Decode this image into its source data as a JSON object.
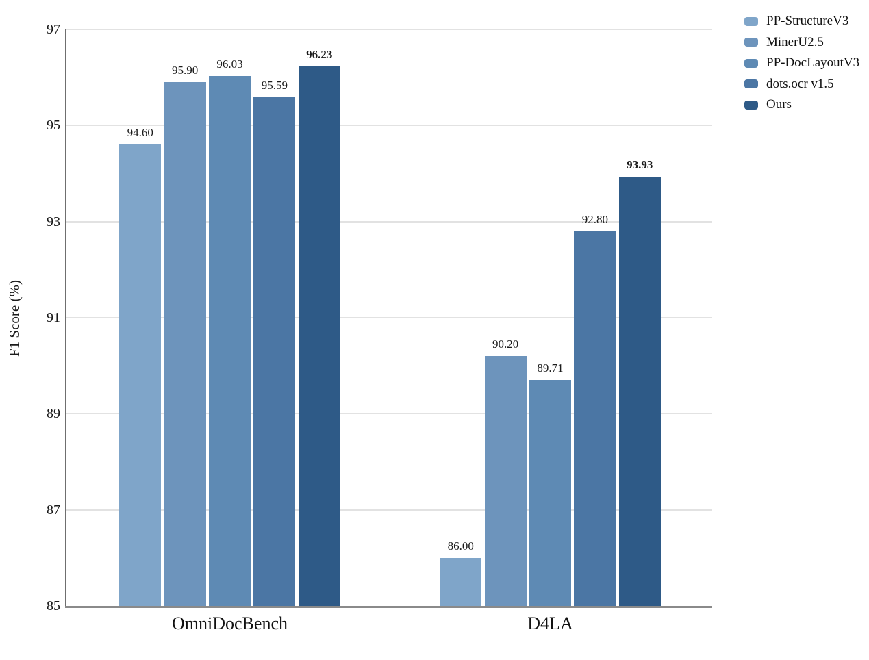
{
  "chart_data": {
    "type": "bar",
    "title": "",
    "xlabel": "",
    "ylabel": "F1 Score (%)",
    "categories": [
      "OmniDocBench",
      "D4LA"
    ],
    "series": [
      {
        "name": "PP-StructureV3",
        "color": "#7FA5C9",
        "values": [
          94.6,
          86.0
        ],
        "bold_labels": false
      },
      {
        "name": "MinerU2.5",
        "color": "#6D94BC",
        "values": [
          95.9,
          90.2
        ],
        "bold_labels": false
      },
      {
        "name": "PP-DocLayoutV3",
        "color": "#5E8AB4",
        "values": [
          96.03,
          89.71
        ],
        "bold_labels": false
      },
      {
        "name": "dots.ocr v1.5",
        "color": "#4B76A4",
        "values": [
          95.59,
          92.8
        ],
        "bold_labels": false
      },
      {
        "name": "Ours",
        "color": "#2E5A87",
        "values": [
          96.23,
          93.93
        ],
        "bold_labels": true
      }
    ],
    "value_label_decimals": 2,
    "ylim": [
      85,
      97
    ],
    "yticks": [
      85,
      87,
      89,
      91,
      93,
      95,
      97
    ],
    "grid": true,
    "legend_position": "top-right-outside"
  },
  "colors": {
    "grid": "#E2E2E2",
    "spine_left": "#6F6F6F",
    "spine_bottom": "#8A8A8A",
    "text": "#1A1A1A",
    "background": "#FFFFFF"
  }
}
